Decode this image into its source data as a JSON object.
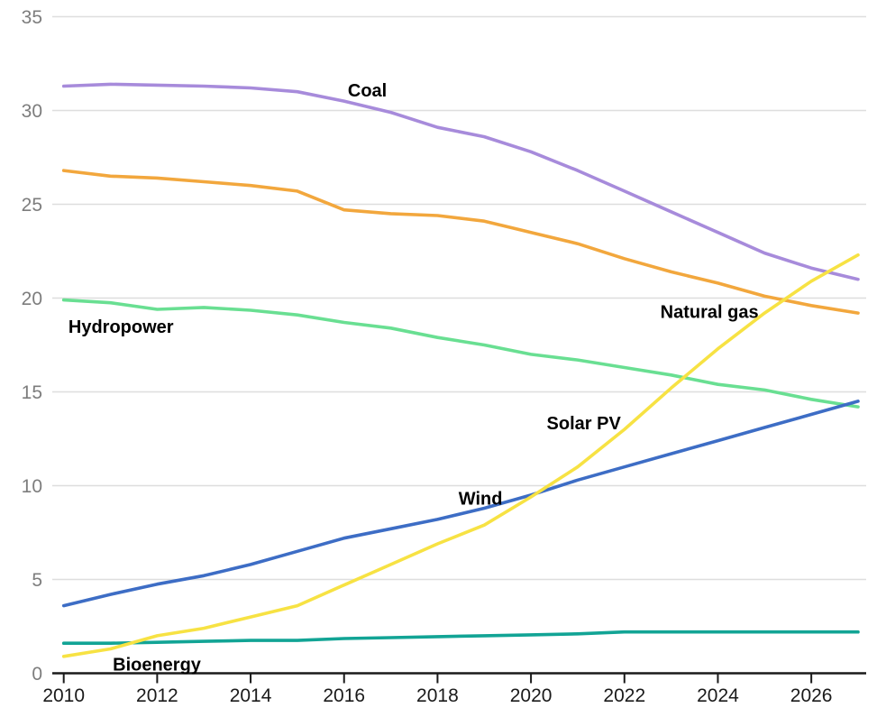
{
  "chart_data": {
    "type": "line",
    "title": "",
    "xlabel": "",
    "ylabel": "",
    "xlim": [
      2009.75,
      2027.2
    ],
    "ylim": [
      0,
      35
    ],
    "grid": "horizontal",
    "legend_position": "inline-labels",
    "x": [
      2010,
      2011,
      2012,
      2013,
      2014,
      2015,
      2016,
      2017,
      2018,
      2019,
      2020,
      2021,
      2022,
      2023,
      2024,
      2025,
      2026,
      2027
    ],
    "x_ticks": [
      2010,
      2012,
      2014,
      2016,
      2018,
      2020,
      2022,
      2024,
      2026
    ],
    "y_ticks": [
      0,
      5,
      10,
      15,
      20,
      25,
      30,
      35
    ],
    "series": [
      {
        "name": "Hydropower",
        "color": "#69df92",
        "values": [
          19.9,
          19.75,
          19.4,
          19.5,
          19.35,
          19.1,
          18.7,
          18.4,
          17.9,
          17.5,
          17.0,
          16.7,
          16.3,
          15.9,
          15.4,
          15.1,
          14.6,
          14.2
        ]
      },
      {
        "name": "Natural gas",
        "color": "#f2a73d",
        "values": [
          26.8,
          26.5,
          26.4,
          26.2,
          26.0,
          25.7,
          24.7,
          24.5,
          24.4,
          24.1,
          23.5,
          22.9,
          22.1,
          21.4,
          20.8,
          20.1,
          19.6,
          19.2
        ]
      },
      {
        "name": "Coal",
        "color": "#a78bdb",
        "values": [
          31.3,
          31.4,
          31.35,
          31.3,
          31.2,
          31.0,
          30.5,
          29.9,
          29.1,
          28.6,
          27.8,
          26.8,
          25.7,
          24.6,
          23.5,
          22.4,
          21.6,
          21.0
        ]
      },
      {
        "name": "Bioenergy",
        "color": "#12a495",
        "values": [
          1.6,
          1.6,
          1.65,
          1.7,
          1.75,
          1.75,
          1.85,
          1.9,
          1.95,
          2.0,
          2.05,
          2.1,
          2.2,
          2.2,
          2.2,
          2.2,
          2.2,
          2.2
        ]
      },
      {
        "name": "Wind",
        "color": "#3d6dc5",
        "values": [
          3.6,
          4.2,
          4.75,
          5.2,
          5.8,
          6.5,
          7.2,
          7.7,
          8.2,
          8.8,
          9.5,
          10.3,
          11.0,
          11.7,
          12.4,
          13.1,
          13.8,
          14.5
        ]
      },
      {
        "name": "Solar PV",
        "color": "#f7e243",
        "values": [
          0.9,
          1.3,
          2.0,
          2.4,
          3.0,
          3.6,
          4.7,
          5.8,
          6.9,
          7.9,
          9.4,
          11.0,
          13.0,
          15.2,
          17.3,
          19.2,
          20.9,
          22.3
        ]
      }
    ],
    "annotations": [
      {
        "text": "Coal",
        "x_year": 2016.08,
        "y_value": 30.75,
        "anchor": "start"
      },
      {
        "text": "Natural gas",
        "x_year": 2023.82,
        "y_value": 18.95,
        "anchor": "middle"
      },
      {
        "text": "Hydropower",
        "x_year": 2010.1,
        "y_value": 18.15,
        "anchor": "start"
      },
      {
        "text": "Solar PV",
        "x_year": 2021.13,
        "y_value": 13.0,
        "anchor": "middle"
      },
      {
        "text": "Wind",
        "x_year": 2018.92,
        "y_value": 9.0,
        "anchor": "middle"
      },
      {
        "text": "Bioenergy",
        "x_year": 2011.05,
        "y_value": 0.15,
        "anchor": "start"
      }
    ]
  }
}
